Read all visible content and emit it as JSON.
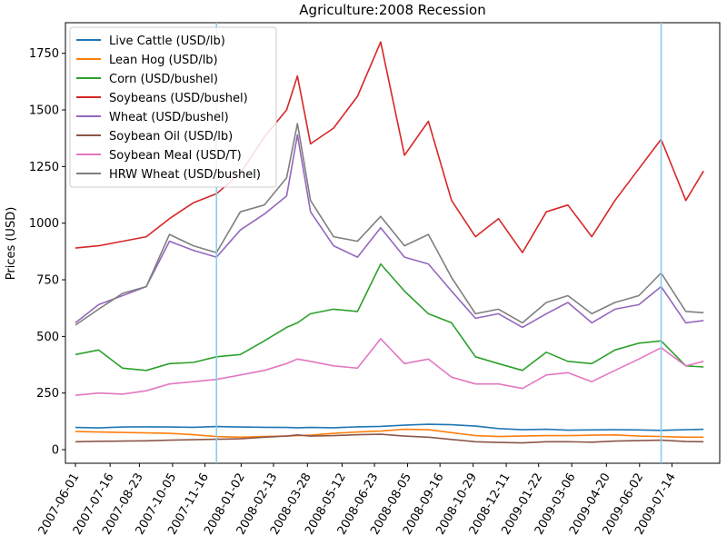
{
  "chart_data": {
    "type": "line",
    "title": "Agriculture:2008 Recession",
    "xlabel": "",
    "ylabel": "Prices (USD)",
    "xlim": [
      "2007-05-19",
      "2009-09-14"
    ],
    "ylim": [
      -60,
      1885
    ],
    "yticks": [
      0,
      250,
      500,
      750,
      1000,
      1250,
      1500,
      1750
    ],
    "xticks": [
      "2007-06-01",
      "2007-07-16",
      "2007-08-23",
      "2007-10-05",
      "2007-11-16",
      "2008-01-02",
      "2008-02-13",
      "2008-03-28",
      "2008-05-12",
      "2008-06-23",
      "2008-08-05",
      "2008-09-16",
      "2008-10-29",
      "2008-12-11",
      "2009-01-22",
      "2009-03-06",
      "2009-04-20",
      "2009-06-02",
      "2009-07-14"
    ],
    "legend_position": "top-left",
    "grid": false,
    "vlines": {
      "color": "#87ceeb",
      "dates": [
        "2007-12-01",
        "2009-06-30"
      ]
    },
    "x": [
      "2007-06-01",
      "2007-07-01",
      "2007-08-01",
      "2007-09-01",
      "2007-10-01",
      "2007-11-01",
      "2007-12-01",
      "2008-01-01",
      "2008-02-01",
      "2008-03-01",
      "2008-03-15",
      "2008-04-01",
      "2008-05-01",
      "2008-06-01",
      "2008-07-01",
      "2008-08-01",
      "2008-09-01",
      "2008-10-01",
      "2008-11-01",
      "2008-12-01",
      "2009-01-01",
      "2009-02-01",
      "2009-03-01",
      "2009-04-01",
      "2009-05-01",
      "2009-06-01",
      "2009-06-30",
      "2009-08-01",
      "2009-08-24"
    ],
    "series": [
      {
        "name": "Live Cattle (USD/lb)",
        "color": "#1f77b4",
        "values": [
          98,
          96,
          100,
          101,
          100,
          99,
          102,
          100,
          99,
          98,
          97,
          98,
          97,
          101,
          103,
          108,
          112,
          110,
          104,
          93,
          88,
          90,
          86,
          87,
          88,
          87,
          85,
          88,
          90
        ]
      },
      {
        "name": "Lean Hog (USD/lb)",
        "color": "#ff7f0e",
        "values": [
          80,
          78,
          76,
          74,
          72,
          66,
          58,
          55,
          58,
          60,
          62,
          64,
          72,
          78,
          82,
          90,
          88,
          75,
          62,
          58,
          60,
          62,
          62,
          64,
          65,
          60,
          58,
          55,
          55
        ]
      },
      {
        "name": "Corn (USD/bushel)",
        "color": "#2ca02c",
        "values": [
          420,
          440,
          360,
          350,
          380,
          385,
          410,
          420,
          480,
          540,
          560,
          600,
          620,
          610,
          820,
          700,
          600,
          560,
          410,
          380,
          350,
          430,
          390,
          380,
          440,
          470,
          480,
          370,
          365
        ]
      },
      {
        "name": "Soybeans (USD/bushel)",
        "color": "#d62728",
        "values": [
          890,
          900,
          920,
          940,
          1020,
          1090,
          1130,
          1220,
          1380,
          1500,
          1650,
          1350,
          1420,
          1560,
          1800,
          1300,
          1450,
          1100,
          940,
          1020,
          870,
          1050,
          1080,
          940,
          1100,
          1240,
          1370,
          1100,
          1230
        ]
      },
      {
        "name": "Wheat (USD/bushel)",
        "color": "#9467bd",
        "values": [
          560,
          640,
          680,
          720,
          920,
          880,
          850,
          970,
          1040,
          1120,
          1390,
          1050,
          900,
          850,
          980,
          850,
          820,
          700,
          580,
          600,
          540,
          600,
          650,
          560,
          620,
          640,
          720,
          560,
          570
        ]
      },
      {
        "name": "Soybean Oil (USD/lb)",
        "color": "#8c564b",
        "values": [
          35,
          37,
          38,
          39,
          42,
          44,
          46,
          48,
          55,
          60,
          65,
          60,
          62,
          66,
          68,
          60,
          55,
          45,
          35,
          32,
          30,
          35,
          35,
          33,
          38,
          40,
          42,
          36,
          35
        ]
      },
      {
        "name": "Soybean Meal (USD/T)",
        "color": "#e377c2",
        "values": [
          240,
          250,
          245,
          260,
          290,
          300,
          310,
          330,
          350,
          380,
          400,
          390,
          370,
          360,
          490,
          380,
          400,
          320,
          290,
          290,
          270,
          330,
          340,
          300,
          350,
          400,
          450,
          370,
          390
        ]
      },
      {
        "name": "HRW Wheat (USD/bushel)",
        "color": "#7f7f7f",
        "values": [
          550,
          620,
          690,
          720,
          950,
          900,
          870,
          1050,
          1080,
          1200,
          1440,
          1100,
          940,
          920,
          1030,
          900,
          950,
          760,
          600,
          620,
          560,
          650,
          680,
          600,
          650,
          680,
          780,
          610,
          605
        ]
      }
    ]
  }
}
